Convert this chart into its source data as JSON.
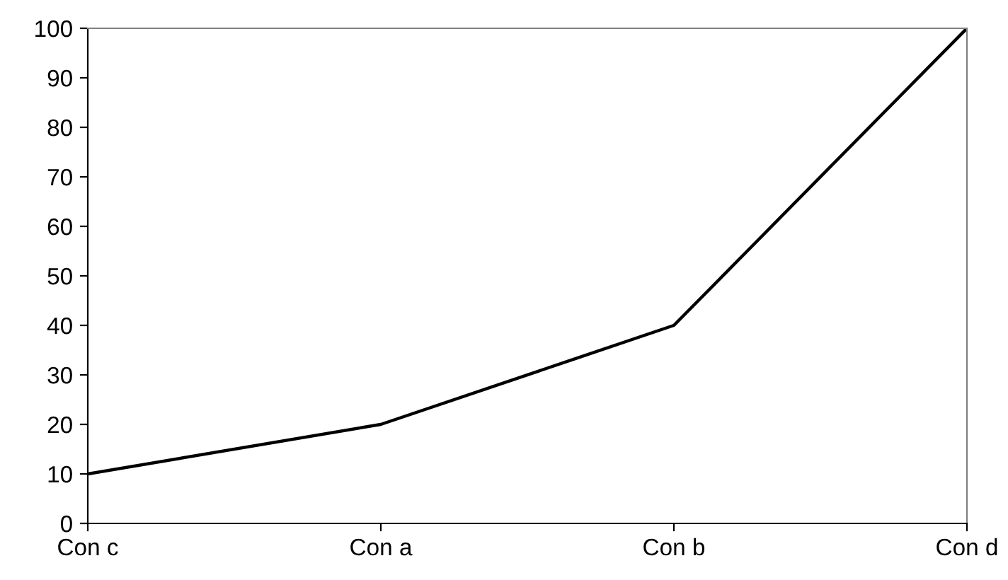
{
  "chart_data": {
    "type": "line",
    "categories": [
      "Con c",
      "Con a",
      "Con b",
      "Con d"
    ],
    "series": [
      {
        "color": "#000000",
        "values": [
          10,
          20,
          40,
          100
        ]
      }
    ],
    "ylim": [
      0,
      100
    ],
    "yticks": [
      0,
      10,
      20,
      30,
      40,
      50,
      60,
      70,
      80,
      90,
      100
    ],
    "grid": false,
    "legend": false,
    "marker": "none",
    "line_style": "solid"
  }
}
